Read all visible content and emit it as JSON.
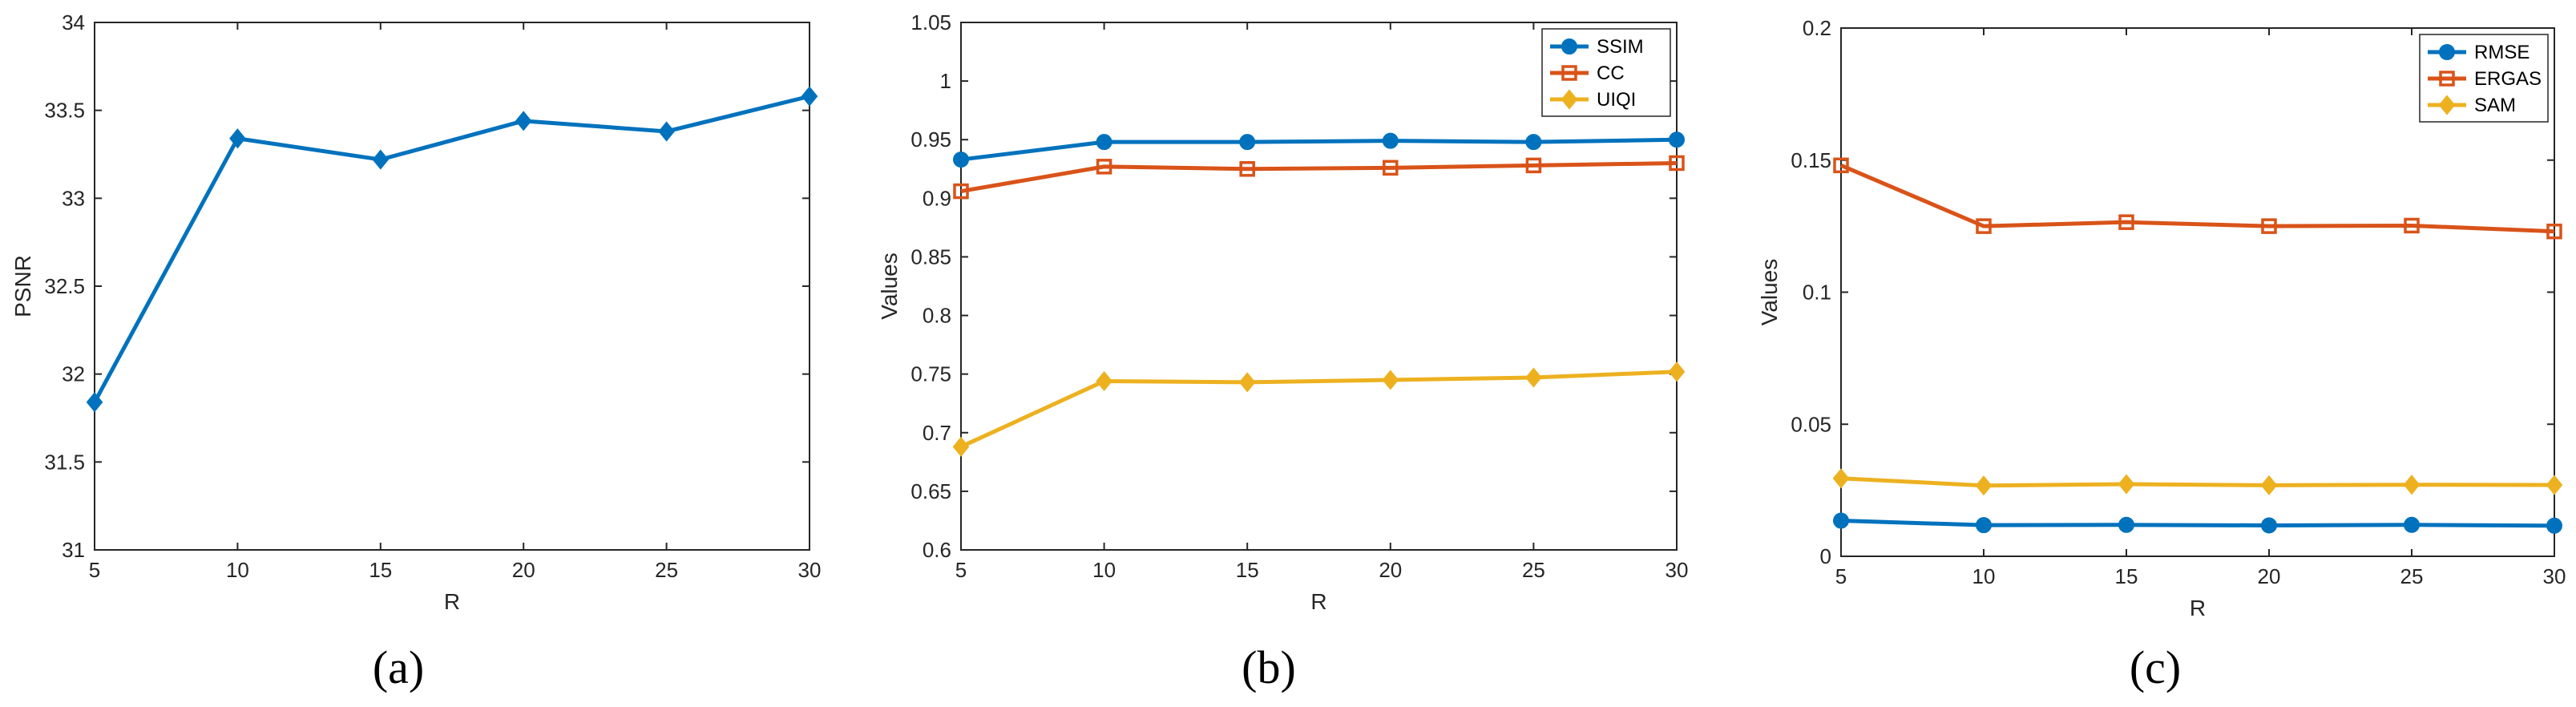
{
  "figure": {
    "panels": [
      "(a)",
      "(b)",
      "(c)"
    ]
  },
  "chart_data": [
    {
      "type": "line",
      "caption": "(a)",
      "xlabel": "R",
      "ylabel": "PSNR",
      "x": [
        5,
        10,
        15,
        20,
        25,
        30
      ],
      "xlim": [
        5,
        30
      ],
      "ylim": [
        31,
        34
      ],
      "xticks": [
        "5",
        "10",
        "15",
        "20",
        "25",
        "30"
      ],
      "yticks": [
        "31",
        "31.5",
        "32",
        "32.5",
        "33",
        "33.5",
        "34"
      ],
      "ytick_values": [
        31,
        31.5,
        32,
        32.5,
        33,
        33.5,
        34
      ],
      "legend": false,
      "series": [
        {
          "name": "PSNR",
          "color": "#0072BD",
          "marker": "diamond",
          "values": [
            31.84,
            33.34,
            33.22,
            33.44,
            33.38,
            33.58
          ]
        }
      ]
    },
    {
      "type": "line",
      "caption": "(b)",
      "xlabel": "R",
      "ylabel": "Values",
      "x": [
        5,
        10,
        15,
        20,
        25,
        30
      ],
      "xlim": [
        5,
        30
      ],
      "ylim": [
        0.6,
        1.05
      ],
      "xticks": [
        "5",
        "10",
        "15",
        "20",
        "25",
        "30"
      ],
      "yticks": [
        "0.6",
        "0.65",
        "0.7",
        "0.75",
        "0.8",
        "0.85",
        "0.9",
        "0.95",
        "1",
        "1.05"
      ],
      "ytick_values": [
        0.6,
        0.65,
        0.7,
        0.75,
        0.8,
        0.85,
        0.9,
        0.95,
        1.0,
        1.05
      ],
      "legend": true,
      "legend_position": "top-right",
      "series": [
        {
          "name": "SSIM",
          "color": "#0072BD",
          "marker": "circle",
          "values": [
            0.933,
            0.948,
            0.948,
            0.949,
            0.948,
            0.95
          ]
        },
        {
          "name": "CC",
          "color": "#D95319",
          "marker": "square",
          "values": [
            0.906,
            0.927,
            0.925,
            0.926,
            0.928,
            0.93
          ]
        },
        {
          "name": "UIQI",
          "color": "#EDB120",
          "marker": "diamond",
          "values": [
            0.688,
            0.744,
            0.743,
            0.745,
            0.747,
            0.752
          ]
        }
      ]
    },
    {
      "type": "line",
      "caption": "(c)",
      "xlabel": "R",
      "ylabel": "Values",
      "x": [
        5,
        10,
        15,
        20,
        25,
        30
      ],
      "xlim": [
        5,
        30
      ],
      "ylim": [
        0,
        0.2
      ],
      "xticks": [
        "5",
        "10",
        "15",
        "20",
        "25",
        "30"
      ],
      "yticks": [
        "0",
        "0.05",
        "0.1",
        "0.15",
        "0.2"
      ],
      "ytick_values": [
        0,
        0.05,
        0.1,
        0.15,
        0.2
      ],
      "legend": true,
      "legend_position": "top-right",
      "series": [
        {
          "name": "RMSE",
          "color": "#0072BD",
          "marker": "circle",
          "values": [
            0.0135,
            0.0118,
            0.0119,
            0.0117,
            0.0119,
            0.0116
          ]
        },
        {
          "name": "ERGAS",
          "color": "#D95319",
          "marker": "square",
          "values": [
            0.148,
            0.125,
            0.1265,
            0.125,
            0.1252,
            0.123
          ]
        },
        {
          "name": "SAM",
          "color": "#EDB120",
          "marker": "diamond",
          "values": [
            0.0295,
            0.0268,
            0.0273,
            0.0269,
            0.0271,
            0.027
          ]
        }
      ]
    }
  ]
}
